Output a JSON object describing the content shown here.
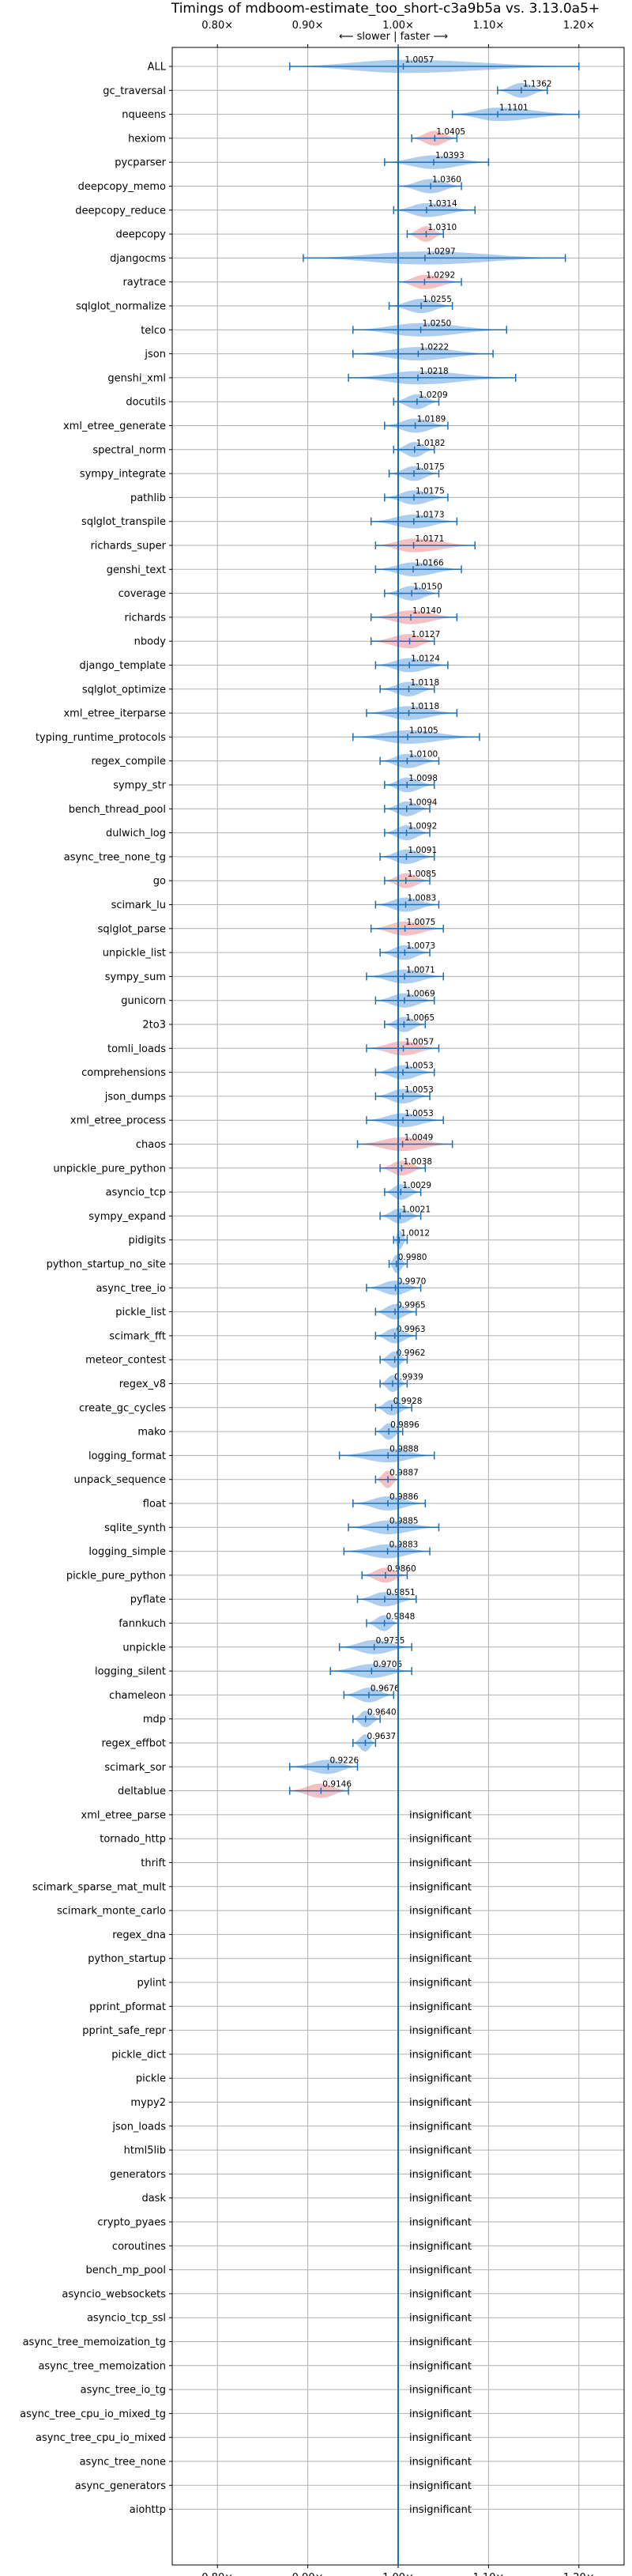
{
  "chart_data": {
    "type": "violin",
    "title": "Timings of mdboom-estimate_too_short-c3a9b5a vs. 3.13.0a5+",
    "direction_label": "⟵ slower | faster ⟶",
    "xlim": [
      0.75,
      1.25
    ],
    "x_ticks": [
      0.8,
      0.9,
      1.0,
      1.1,
      1.2
    ],
    "x_tick_labels": [
      "0.80×",
      "0.90×",
      "1.00×",
      "1.10×",
      "1.20×"
    ],
    "reference_value": 1.0,
    "grid": true,
    "colors": {
      "faster": "#4a90d9",
      "slower": "#e8737a",
      "reference_line": "#1f6fb4",
      "grid": "#b0b0b0"
    },
    "insignificant_label": "insignificant",
    "benchmarks": [
      {
        "name": "ALL",
        "value": 1.0057,
        "label": "1.0057",
        "low": 0.88,
        "high": 1.2,
        "status": "faster"
      },
      {
        "name": "gc_traversal",
        "value": 1.1362,
        "label": "1.1362",
        "low": 1.11,
        "high": 1.165,
        "status": "faster"
      },
      {
        "name": "nqueens",
        "value": 1.1101,
        "label": "1.1101",
        "low": 1.06,
        "high": 1.2,
        "status": "faster"
      },
      {
        "name": "hexiom",
        "value": 1.0405,
        "label": "1.0405",
        "low": 1.015,
        "high": 1.065,
        "status": "slower"
      },
      {
        "name": "pycparser",
        "value": 1.0393,
        "label": "1.0393",
        "low": 0.985,
        "high": 1.1,
        "status": "faster"
      },
      {
        "name": "deepcopy_memo",
        "value": 1.036,
        "label": "1.0360",
        "low": 1.0,
        "high": 1.07,
        "status": "faster"
      },
      {
        "name": "deepcopy_reduce",
        "value": 1.0314,
        "label": "1.0314",
        "low": 0.995,
        "high": 1.085,
        "status": "faster"
      },
      {
        "name": "deepcopy",
        "value": 1.031,
        "label": "1.0310",
        "low": 1.01,
        "high": 1.05,
        "status": "slower"
      },
      {
        "name": "djangocms",
        "value": 1.0297,
        "label": "1.0297",
        "low": 0.895,
        "high": 1.185,
        "status": "faster"
      },
      {
        "name": "raytrace",
        "value": 1.0292,
        "label": "1.0292",
        "low": 1.0,
        "high": 1.07,
        "status": "slower"
      },
      {
        "name": "sqlglot_normalize",
        "value": 1.0255,
        "label": "1.0255",
        "low": 0.99,
        "high": 1.06,
        "status": "faster"
      },
      {
        "name": "telco",
        "value": 1.025,
        "label": "1.0250",
        "low": 0.95,
        "high": 1.12,
        "status": "faster"
      },
      {
        "name": "json",
        "value": 1.0222,
        "label": "1.0222",
        "low": 0.95,
        "high": 1.105,
        "status": "faster"
      },
      {
        "name": "genshi_xml",
        "value": 1.0218,
        "label": "1.0218",
        "low": 0.945,
        "high": 1.13,
        "status": "faster"
      },
      {
        "name": "docutils",
        "value": 1.0209,
        "label": "1.0209",
        "low": 0.995,
        "high": 1.045,
        "status": "faster"
      },
      {
        "name": "xml_etree_generate",
        "value": 1.0189,
        "label": "1.0189",
        "low": 0.985,
        "high": 1.055,
        "status": "faster"
      },
      {
        "name": "spectral_norm",
        "value": 1.0182,
        "label": "1.0182",
        "low": 0.995,
        "high": 1.04,
        "status": "faster"
      },
      {
        "name": "sympy_integrate",
        "value": 1.0175,
        "label": "1.0175",
        "low": 0.99,
        "high": 1.045,
        "status": "faster"
      },
      {
        "name": "pathlib",
        "value": 1.0175,
        "label": "1.0175",
        "low": 0.985,
        "high": 1.055,
        "status": "faster"
      },
      {
        "name": "sqlglot_transpile",
        "value": 1.0173,
        "label": "1.0173",
        "low": 0.97,
        "high": 1.065,
        "status": "faster"
      },
      {
        "name": "richards_super",
        "value": 1.0171,
        "label": "1.0171",
        "low": 0.975,
        "high": 1.085,
        "status": "slower"
      },
      {
        "name": "genshi_text",
        "value": 1.0166,
        "label": "1.0166",
        "low": 0.975,
        "high": 1.07,
        "status": "faster"
      },
      {
        "name": "coverage",
        "value": 1.015,
        "label": "1.0150",
        "low": 0.985,
        "high": 1.045,
        "status": "faster"
      },
      {
        "name": "richards",
        "value": 1.014,
        "label": "1.0140",
        "low": 0.97,
        "high": 1.065,
        "status": "slower"
      },
      {
        "name": "nbody",
        "value": 1.0127,
        "label": "1.0127",
        "low": 0.97,
        "high": 1.04,
        "status": "slower"
      },
      {
        "name": "django_template",
        "value": 1.0124,
        "label": "1.0124",
        "low": 0.975,
        "high": 1.055,
        "status": "faster"
      },
      {
        "name": "sqlglot_optimize",
        "value": 1.0118,
        "label": "1.0118",
        "low": 0.98,
        "high": 1.04,
        "status": "faster"
      },
      {
        "name": "xml_etree_iterparse",
        "value": 1.0118,
        "label": "1.0118",
        "low": 0.965,
        "high": 1.065,
        "status": "faster"
      },
      {
        "name": "typing_runtime_protocols",
        "value": 1.0105,
        "label": "1.0105",
        "low": 0.95,
        "high": 1.09,
        "status": "faster"
      },
      {
        "name": "regex_compile",
        "value": 1.01,
        "label": "1.0100",
        "low": 0.98,
        "high": 1.045,
        "status": "faster"
      },
      {
        "name": "sympy_str",
        "value": 1.0098,
        "label": "1.0098",
        "low": 0.985,
        "high": 1.04,
        "status": "faster"
      },
      {
        "name": "bench_thread_pool",
        "value": 1.0094,
        "label": "1.0094",
        "low": 0.985,
        "high": 1.035,
        "status": "faster"
      },
      {
        "name": "dulwich_log",
        "value": 1.0092,
        "label": "1.0092",
        "low": 0.985,
        "high": 1.035,
        "status": "faster"
      },
      {
        "name": "async_tree_none_tg",
        "value": 1.0091,
        "label": "1.0091",
        "low": 0.98,
        "high": 1.04,
        "status": "faster"
      },
      {
        "name": "go",
        "value": 1.0085,
        "label": "1.0085",
        "low": 0.985,
        "high": 1.035,
        "status": "slower"
      },
      {
        "name": "scimark_lu",
        "value": 1.0083,
        "label": "1.0083",
        "low": 0.975,
        "high": 1.045,
        "status": "faster"
      },
      {
        "name": "sqlglot_parse",
        "value": 1.0075,
        "label": "1.0075",
        "low": 0.97,
        "high": 1.05,
        "status": "slower"
      },
      {
        "name": "unpickle_list",
        "value": 1.0073,
        "label": "1.0073",
        "low": 0.98,
        "high": 1.035,
        "status": "faster"
      },
      {
        "name": "sympy_sum",
        "value": 1.0071,
        "label": "1.0071",
        "low": 0.965,
        "high": 1.05,
        "status": "faster"
      },
      {
        "name": "gunicorn",
        "value": 1.0069,
        "label": "1.0069",
        "low": 0.975,
        "high": 1.04,
        "status": "faster"
      },
      {
        "name": "2to3",
        "value": 1.0065,
        "label": "1.0065",
        "low": 0.985,
        "high": 1.03,
        "status": "faster"
      },
      {
        "name": "tomli_loads",
        "value": 1.0057,
        "label": "1.0057",
        "low": 0.965,
        "high": 1.045,
        "status": "slower"
      },
      {
        "name": "comprehensions",
        "value": 1.0053,
        "label": "1.0053",
        "low": 0.975,
        "high": 1.04,
        "status": "faster"
      },
      {
        "name": "json_dumps",
        "value": 1.0053,
        "label": "1.0053",
        "low": 0.975,
        "high": 1.035,
        "status": "faster"
      },
      {
        "name": "xml_etree_process",
        "value": 1.0053,
        "label": "1.0053",
        "low": 0.965,
        "high": 1.05,
        "status": "faster"
      },
      {
        "name": "chaos",
        "value": 1.0049,
        "label": "1.0049",
        "low": 0.955,
        "high": 1.06,
        "status": "slower"
      },
      {
        "name": "unpickle_pure_python",
        "value": 1.0038,
        "label": "1.0038",
        "low": 0.98,
        "high": 1.03,
        "status": "slower"
      },
      {
        "name": "asyncio_tcp",
        "value": 1.0029,
        "label": "1.0029",
        "low": 0.985,
        "high": 1.025,
        "status": "faster"
      },
      {
        "name": "sympy_expand",
        "value": 1.0021,
        "label": "1.0021",
        "low": 0.98,
        "high": 1.025,
        "status": "faster"
      },
      {
        "name": "pidigits",
        "value": 1.0012,
        "label": "1.0012",
        "low": 0.995,
        "high": 1.01,
        "status": "faster"
      },
      {
        "name": "python_startup_no_site",
        "value": 0.998,
        "label": "0.9980",
        "low": 0.99,
        "high": 1.01,
        "status": "faster"
      },
      {
        "name": "async_tree_io",
        "value": 0.997,
        "label": "0.9970",
        "low": 0.965,
        "high": 1.025,
        "status": "faster"
      },
      {
        "name": "pickle_list",
        "value": 0.9965,
        "label": "0.9965",
        "low": 0.975,
        "high": 1.02,
        "status": "faster"
      },
      {
        "name": "scimark_fft",
        "value": 0.9963,
        "label": "0.9963",
        "low": 0.975,
        "high": 1.02,
        "status": "faster"
      },
      {
        "name": "meteor_contest",
        "value": 0.9962,
        "label": "0.9962",
        "low": 0.98,
        "high": 1.01,
        "status": "faster"
      },
      {
        "name": "regex_v8",
        "value": 0.9939,
        "label": "0.9939",
        "low": 0.98,
        "high": 1.01,
        "status": "faster"
      },
      {
        "name": "create_gc_cycles",
        "value": 0.9928,
        "label": "0.9928",
        "low": 0.975,
        "high": 1.015,
        "status": "faster"
      },
      {
        "name": "mako",
        "value": 0.9896,
        "label": "0.9896",
        "low": 0.975,
        "high": 1.005,
        "status": "faster"
      },
      {
        "name": "logging_format",
        "value": 0.9888,
        "label": "0.9888",
        "low": 0.935,
        "high": 1.04,
        "status": "faster"
      },
      {
        "name": "unpack_sequence",
        "value": 0.9887,
        "label": "0.9887",
        "low": 0.975,
        "high": 1.0,
        "status": "slower"
      },
      {
        "name": "float",
        "value": 0.9886,
        "label": "0.9886",
        "low": 0.95,
        "high": 1.03,
        "status": "faster"
      },
      {
        "name": "sqlite_synth",
        "value": 0.9885,
        "label": "0.9885",
        "low": 0.945,
        "high": 1.045,
        "status": "faster"
      },
      {
        "name": "logging_simple",
        "value": 0.9883,
        "label": "0.9883",
        "low": 0.94,
        "high": 1.035,
        "status": "faster"
      },
      {
        "name": "pickle_pure_python",
        "value": 0.986,
        "label": "0.9860",
        "low": 0.96,
        "high": 1.01,
        "status": "slower"
      },
      {
        "name": "pyflate",
        "value": 0.9851,
        "label": "0.9851",
        "low": 0.955,
        "high": 1.02,
        "status": "faster"
      },
      {
        "name": "fannkuch",
        "value": 0.9848,
        "label": "0.9848",
        "low": 0.965,
        "high": 1.0,
        "status": "faster"
      },
      {
        "name": "unpickle",
        "value": 0.9735,
        "label": "0.9735",
        "low": 0.935,
        "high": 1.015,
        "status": "faster"
      },
      {
        "name": "logging_silent",
        "value": 0.9706,
        "label": "0.9706",
        "low": 0.925,
        "high": 1.015,
        "status": "faster"
      },
      {
        "name": "chameleon",
        "value": 0.9676,
        "label": "0.9676",
        "low": 0.94,
        "high": 0.995,
        "status": "faster"
      },
      {
        "name": "mdp",
        "value": 0.964,
        "label": "0.9640",
        "low": 0.95,
        "high": 0.98,
        "status": "faster"
      },
      {
        "name": "regex_effbot",
        "value": 0.9637,
        "label": "0.9637",
        "low": 0.95,
        "high": 0.975,
        "status": "faster"
      },
      {
        "name": "scimark_sor",
        "value": 0.9226,
        "label": "0.9226",
        "low": 0.88,
        "high": 0.955,
        "status": "faster"
      },
      {
        "name": "deltablue",
        "value": 0.9146,
        "label": "0.9146",
        "low": 0.88,
        "high": 0.945,
        "status": "slower"
      },
      {
        "name": "xml_etree_parse",
        "status": "insignificant"
      },
      {
        "name": "tornado_http",
        "status": "insignificant"
      },
      {
        "name": "thrift",
        "status": "insignificant"
      },
      {
        "name": "scimark_sparse_mat_mult",
        "status": "insignificant"
      },
      {
        "name": "scimark_monte_carlo",
        "status": "insignificant"
      },
      {
        "name": "regex_dna",
        "status": "insignificant"
      },
      {
        "name": "python_startup",
        "status": "insignificant"
      },
      {
        "name": "pylint",
        "status": "insignificant"
      },
      {
        "name": "pprint_pformat",
        "status": "insignificant"
      },
      {
        "name": "pprint_safe_repr",
        "status": "insignificant"
      },
      {
        "name": "pickle_dict",
        "status": "insignificant"
      },
      {
        "name": "pickle",
        "status": "insignificant"
      },
      {
        "name": "mypy2",
        "status": "insignificant"
      },
      {
        "name": "json_loads",
        "status": "insignificant"
      },
      {
        "name": "html5lib",
        "status": "insignificant"
      },
      {
        "name": "generators",
        "status": "insignificant"
      },
      {
        "name": "dask",
        "status": "insignificant"
      },
      {
        "name": "crypto_pyaes",
        "status": "insignificant"
      },
      {
        "name": "coroutines",
        "status": "insignificant"
      },
      {
        "name": "bench_mp_pool",
        "status": "insignificant"
      },
      {
        "name": "asyncio_websockets",
        "status": "insignificant"
      },
      {
        "name": "asyncio_tcp_ssl",
        "status": "insignificant"
      },
      {
        "name": "async_tree_memoization_tg",
        "status": "insignificant"
      },
      {
        "name": "async_tree_memoization",
        "status": "insignificant"
      },
      {
        "name": "async_tree_io_tg",
        "status": "insignificant"
      },
      {
        "name": "async_tree_cpu_io_mixed_tg",
        "status": "insignificant"
      },
      {
        "name": "async_tree_cpu_io_mixed",
        "status": "insignificant"
      },
      {
        "name": "async_tree_none",
        "status": "insignificant"
      },
      {
        "name": "async_generators",
        "status": "insignificant"
      },
      {
        "name": "aiohttp",
        "status": "insignificant"
      }
    ]
  }
}
